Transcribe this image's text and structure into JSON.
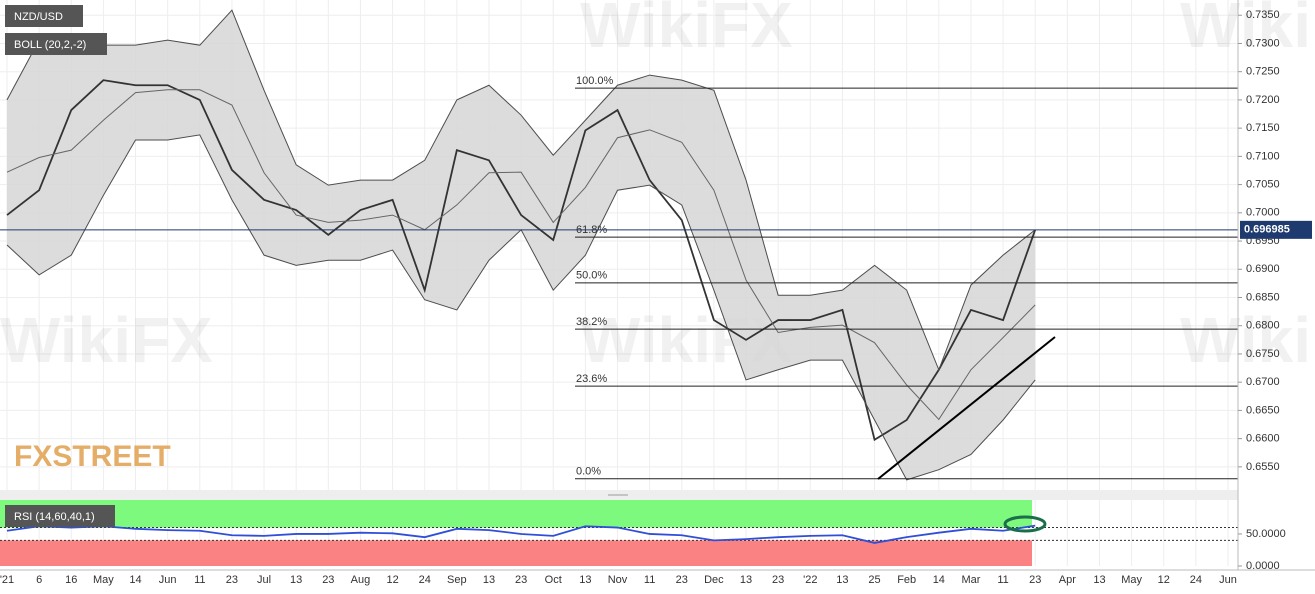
{
  "chart_data": [
    {
      "type": "line",
      "symbol_label": "NZD/USD",
      "indicator_label": "BOLL (20,2,-2)",
      "watermark": "WikiFX",
      "logo": "FXSTREET",
      "categories": [
        "'21",
        "6",
        "16",
        "May",
        "14",
        "Jun",
        "11",
        "23",
        "Jul",
        "13",
        "23",
        "Aug",
        "12",
        "24",
        "Sep",
        "13",
        "23",
        "Oct",
        "13",
        "Nov",
        "11",
        "23",
        "Dec",
        "13",
        "23",
        "'22",
        "13",
        "25",
        "Feb",
        "14",
        "Mar",
        "11",
        "23",
        "Apr",
        "13",
        "May",
        "12",
        "24",
        "Jun"
      ],
      "series": [
        {
          "color": "#333333",
          "values": [
            0.6996,
            0.704,
            0.7182,
            0.7235,
            0.7226,
            0.7226,
            0.72,
            0.7076,
            0.7023,
            0.7005,
            0.6961,
            0.7005,
            0.7023,
            0.6863,
            0.7111,
            0.7093,
            0.6996,
            0.6952,
            0.7146,
            0.7182,
            0.7058,
            0.6987,
            0.681,
            0.6775,
            0.681,
            0.681,
            0.6828,
            0.6598,
            0.6633,
            0.6722,
            0.6828,
            0.681,
            0.697,
            null,
            null,
            null,
            null,
            null,
            null
          ]
        },
        {
          "color": "#4d4d4d",
          "values": [
            0.72,
            0.7306,
            0.7297,
            0.7297,
            0.7297,
            0.7306,
            0.7297,
            0.7359,
            0.7217,
            0.7085,
            0.7049,
            0.7058,
            0.7058,
            0.7093,
            0.72,
            0.7226,
            0.7173,
            0.7102,
            0.7164,
            0.7226,
            0.7244,
            0.7235,
            0.7217,
            0.7058,
            0.6854,
            0.6854,
            0.6863,
            0.6907,
            0.6863,
            0.6722,
            0.6872,
            0.6925,
            0.697,
            null,
            null,
            null,
            null,
            null,
            null
          ]
        },
        {
          "color": "#4d4d4d",
          "values": [
            0.6943,
            0.689,
            0.6925,
            0.7031,
            0.7129,
            0.7129,
            0.7138,
            0.7023,
            0.6925,
            0.6907,
            0.6916,
            0.6916,
            0.6934,
            0.6846,
            0.6828,
            0.6916,
            0.697,
            0.6863,
            0.6925,
            0.704,
            0.7049,
            0.7014,
            0.6863,
            0.6704,
            0.6722,
            0.6739,
            0.6739,
            0.6633,
            0.6527,
            0.6545,
            0.6572,
            0.6633,
            0.6704,
            null,
            null,
            null,
            null,
            null,
            null
          ]
        },
        {
          "color": "#666666",
          "values": [
            0.7072,
            0.7098,
            0.7111,
            0.7164,
            0.7213,
            0.7218,
            0.7218,
            0.7191,
            0.7071,
            0.6996,
            0.6983,
            0.6987,
            0.6996,
            0.697,
            0.7014,
            0.7071,
            0.7072,
            0.6983,
            0.7045,
            0.7133,
            0.7147,
            0.7125,
            0.704,
            0.6881,
            0.6788,
            0.6797,
            0.6801,
            0.677,
            0.6695,
            0.6634,
            0.6722,
            0.6779,
            0.6837,
            null,
            null,
            null,
            null,
            null,
            null
          ]
        }
      ],
      "band_fill": "#d6d6d6",
      "last_price": 0.696985,
      "fib_levels": [
        {
          "label": "100.0%",
          "value": 0.7221
        },
        {
          "label": "61.8%",
          "value": 0.6957
        },
        {
          "label": "50.0%",
          "value": 0.6876
        },
        {
          "label": "38.2%",
          "value": 0.6794
        },
        {
          "label": "23.6%",
          "value": 0.6693
        },
        {
          "label": "0.0%",
          "value": 0.6529
        }
      ],
      "ylim": [
        0.6509,
        0.7377
      ],
      "yticks": [
        {
          "value": 0.655,
          "label": "0.6550"
        },
        {
          "value": 0.66,
          "label": "0.6600"
        },
        {
          "value": 0.665,
          "label": "0.6650"
        },
        {
          "value": 0.67,
          "label": "0.6700"
        },
        {
          "value": 0.675,
          "label": "0.6750"
        },
        {
          "value": 0.68,
          "label": "0.6800"
        },
        {
          "value": 0.685,
          "label": "0.6850"
        },
        {
          "value": 0.69,
          "label": "0.6900"
        },
        {
          "value": 0.695,
          "label": "0.6950"
        },
        {
          "value": 0.7,
          "label": "0.7000"
        },
        {
          "value": 0.705,
          "label": "0.7050"
        },
        {
          "value": 0.71,
          "label": "0.7100"
        },
        {
          "value": 0.715,
          "label": "0.7150"
        },
        {
          "value": 0.72,
          "label": "0.7200"
        },
        {
          "value": 0.725,
          "label": "0.7250"
        },
        {
          "value": 0.73,
          "label": "0.7300"
        },
        {
          "value": 0.735,
          "label": "0.7350"
        }
      ],
      "grid": true
    },
    {
      "type": "line",
      "indicator_label": "RSI (14,60,40,1)",
      "series": [
        {
          "color": "#2f4fd8",
          "values": [
            55,
            62,
            60,
            62,
            58,
            56,
            55,
            48,
            47,
            50,
            50,
            52,
            51,
            45,
            58,
            56,
            50,
            47,
            62,
            60,
            50,
            48,
            40,
            42,
            45,
            47,
            48,
            36,
            45,
            52,
            58,
            55,
            63,
            null,
            null,
            null,
            null,
            null,
            null
          ]
        }
      ],
      "upper_band": 60,
      "lower_band": 40,
      "upper_color": "#7dfa7d",
      "lower_color": "#fa8282",
      "ylim": [
        0,
        103
      ],
      "yticks": [
        {
          "value": 0,
          "label": "0.0000"
        },
        {
          "value": 50,
          "label": "50.0000"
        }
      ]
    }
  ]
}
